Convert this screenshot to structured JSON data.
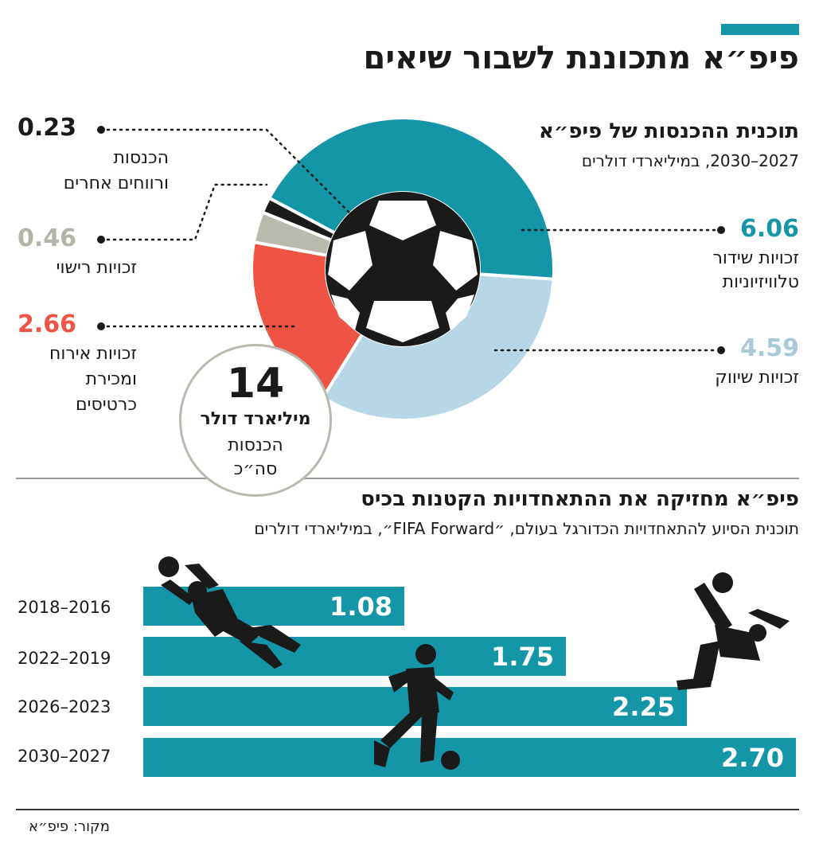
{
  "title": "פיפ״א מתכוננת לשבור שיאים",
  "revenue": {
    "title": "תוכנית ההכנסות של פיפ״א",
    "subtitle": "2027–2030, במיליארדי דולרים",
    "segments": [
      {
        "value": "6.06",
        "label_line1": "זכויות שידור",
        "label_line2": "טלוויזיוניות",
        "color": "#1596a8"
      },
      {
        "value": "4.59",
        "label_line1": "זכויות שיווק",
        "label_line2": "",
        "color": "#b7d7e6"
      },
      {
        "value": "2.66",
        "label_line1": "זכויות אירוח",
        "label_line2": "ומכירת",
        "label_line3": "כרטיסים",
        "color": "#ef5343"
      },
      {
        "value": "0.46",
        "label_line1": "זכויות רישוי",
        "label_line2": "",
        "color": "#b9b9ae"
      },
      {
        "value": "0.23",
        "label_line1": "הכנסות",
        "label_line2": "ורווחים אחרים",
        "color": "#1a1a1a"
      }
    ],
    "total": {
      "number": "14",
      "unit": "מיליארד דולר",
      "line1": "הכנסות",
      "line2": "סה״כ"
    }
  },
  "forward": {
    "title": "פיפ״א מחזיקה את ההתאחדויות הקטנות בכיס",
    "subtitle": "תוכנית הסיוע להתאחדויות הכדורגל בעולם, ״FIFA Forward״, במיליארדי דולרים"
  },
  "source": "מקור: פיפ״א",
  "chart_data": [
    {
      "type": "pie",
      "title": "תוכנית ההכנסות של פיפ״א",
      "subtitle": "2027–2030, במיליארדי דולרים",
      "categories": [
        "זכויות שידור טלוויזיוניות",
        "זכויות שיווק",
        "זכויות אירוח ומכירת כרטיסים",
        "זכויות רישוי",
        "הכנסות ורווחים אחרים"
      ],
      "values": [
        6.06,
        4.59,
        2.66,
        0.46,
        0.23
      ],
      "colors": [
        "#1596a8",
        "#b7d7e6",
        "#ef5343",
        "#b9b9ae",
        "#1a1a1a"
      ],
      "center_label": "14 מיליארד דולר הכנסות סה״כ"
    },
    {
      "type": "bar",
      "orientation": "horizontal",
      "title": "פיפ״א מחזיקה את ההתאחדויות הקטנות בכיס",
      "subtitle": "תוכנית הסיוע להתאחדויות הכדורגל בעולם, ״FIFA Forward״, במיליארדי דולרים",
      "categories": [
        "2016–2018",
        "2019–2022",
        "2023–2026",
        "2027–2030"
      ],
      "category_labels": [
        "2018–2016",
        "2022–2019",
        "2026–2023",
        "2030–2027"
      ],
      "value_labels": [
        "1.08",
        "1.75",
        "2.25",
        "2.70"
      ],
      "values": [
        1.08,
        1.75,
        2.25,
        2.7
      ],
      "xlim": [
        0,
        2.7
      ],
      "color": "#1596a8"
    }
  ]
}
